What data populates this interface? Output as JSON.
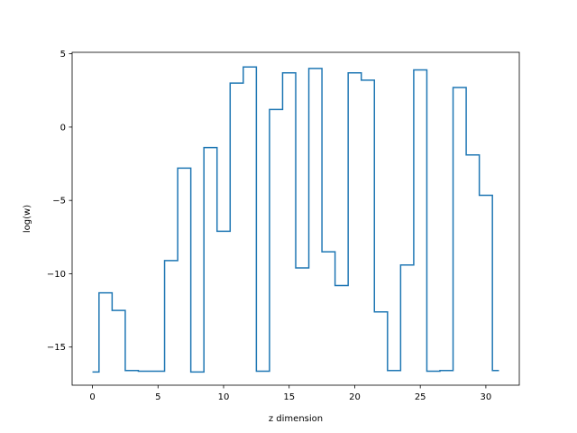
{
  "chart_data": {
    "type": "line",
    "drawstyle": "steps-mid",
    "xlabel": "z dimension",
    "ylabel": "log(w)",
    "xlim": [
      -1.55,
      32.55
    ],
    "ylim": [
      -17.6,
      5.1
    ],
    "xticks": [
      0,
      5,
      10,
      15,
      20,
      25,
      30
    ],
    "yticks": [
      5,
      0,
      -5,
      -10,
      -15
    ],
    "xtick_labels": [
      "0",
      "5",
      "10",
      "15",
      "20",
      "25",
      "30"
    ],
    "ytick_labels": [
      "5",
      "0",
      "−5",
      "−10",
      "−15"
    ],
    "grid": false,
    "series": [
      {
        "color": "#1f77b4",
        "x": [
          0,
          1,
          2,
          3,
          4,
          5,
          6,
          7,
          8,
          9,
          10,
          11,
          12,
          13,
          14,
          15,
          16,
          17,
          18,
          19,
          20,
          21,
          22,
          23,
          24,
          25,
          26,
          27,
          28,
          29,
          30,
          31
        ],
        "y": [
          -16.7,
          -11.3,
          -12.5,
          -16.6,
          -16.65,
          -16.65,
          -9.1,
          -2.8,
          -16.7,
          -1.4,
          -7.1,
          3.0,
          4.1,
          -16.65,
          1.2,
          3.7,
          -9.6,
          4.0,
          -8.5,
          -10.8,
          3.7,
          3.2,
          -12.6,
          -16.6,
          -9.4,
          3.9,
          -16.65,
          -16.6,
          2.7,
          -1.9,
          -4.65,
          -16.6
        ]
      }
    ]
  }
}
